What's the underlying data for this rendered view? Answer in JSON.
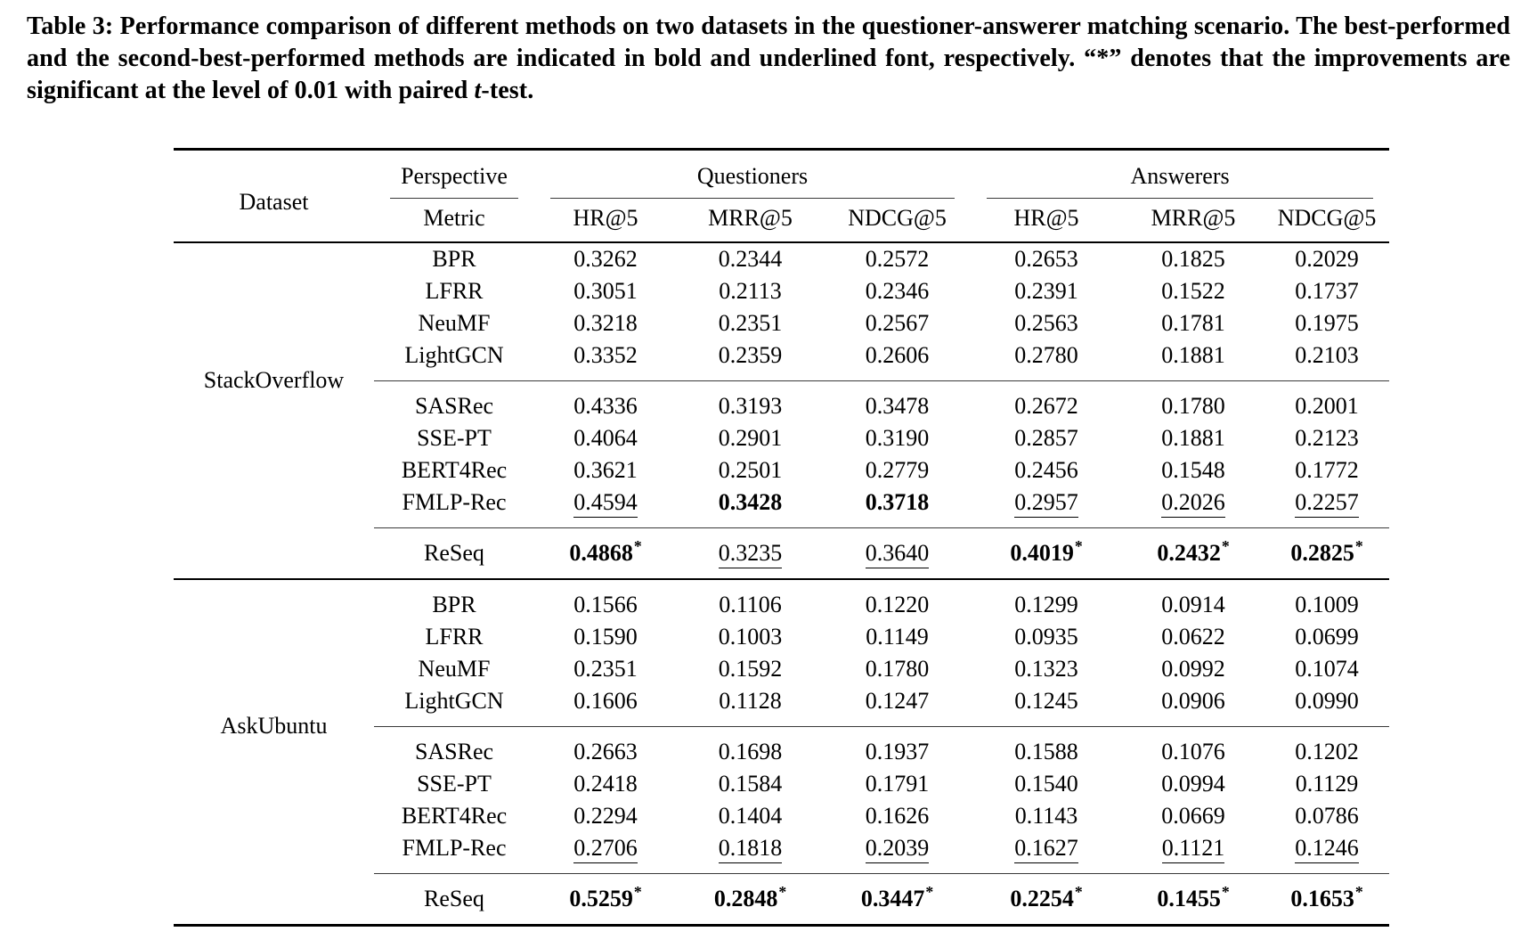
{
  "caption": {
    "text_before_italic": "Table 3: Performance comparison of different methods on two datasets in the questioner-answerer matching scenario. The best-performed and the second-best-performed methods are indicated in bold and underlined font, respectively. “*” denotes that the improvements are significant at the level of 0.01 with paired ",
    "italic_term": "t",
    "text_after_italic": "-test."
  },
  "colors": {
    "text": "#000000",
    "background": "#ffffff",
    "thick_rule": "#000000",
    "thin_rule": "#3a3a3a"
  },
  "table": {
    "header": {
      "dataset_label": "Dataset",
      "perspective_label": "Perspective",
      "metric_label": "Metric",
      "group_labels": [
        "Questioners",
        "Answerers"
      ],
      "metric_columns": [
        "HR@5",
        "MRR@5",
        "NDCG@5",
        "HR@5",
        "MRR@5",
        "NDCG@5"
      ]
    },
    "datasets": [
      {
        "name": "StackOverflow",
        "method_groups": [
          {
            "rows": [
              {
                "method": "BPR",
                "cells": [
                  {
                    "v": "0.3262"
                  },
                  {
                    "v": "0.2344"
                  },
                  {
                    "v": "0.2572"
                  },
                  {
                    "v": "0.2653"
                  },
                  {
                    "v": "0.1825"
                  },
                  {
                    "v": "0.2029"
                  }
                ]
              },
              {
                "method": "LFRR",
                "cells": [
                  {
                    "v": "0.3051"
                  },
                  {
                    "v": "0.2113"
                  },
                  {
                    "v": "0.2346"
                  },
                  {
                    "v": "0.2391"
                  },
                  {
                    "v": "0.1522"
                  },
                  {
                    "v": "0.1737"
                  }
                ]
              },
              {
                "method": "NeuMF",
                "cells": [
                  {
                    "v": "0.3218"
                  },
                  {
                    "v": "0.2351"
                  },
                  {
                    "v": "0.2567"
                  },
                  {
                    "v": "0.2563"
                  },
                  {
                    "v": "0.1781"
                  },
                  {
                    "v": "0.1975"
                  }
                ]
              },
              {
                "method": "LightGCN",
                "cells": [
                  {
                    "v": "0.3352"
                  },
                  {
                    "v": "0.2359"
                  },
                  {
                    "v": "0.2606"
                  },
                  {
                    "v": "0.2780"
                  },
                  {
                    "v": "0.1881"
                  },
                  {
                    "v": "0.2103"
                  }
                ]
              }
            ]
          },
          {
            "rows": [
              {
                "method": "SASRec",
                "cells": [
                  {
                    "v": "0.4336"
                  },
                  {
                    "v": "0.3193"
                  },
                  {
                    "v": "0.3478"
                  },
                  {
                    "v": "0.2672"
                  },
                  {
                    "v": "0.1780"
                  },
                  {
                    "v": "0.2001"
                  }
                ]
              },
              {
                "method": "SSE-PT",
                "cells": [
                  {
                    "v": "0.4064"
                  },
                  {
                    "v": "0.2901"
                  },
                  {
                    "v": "0.3190"
                  },
                  {
                    "v": "0.2857"
                  },
                  {
                    "v": "0.1881"
                  },
                  {
                    "v": "0.2123"
                  }
                ]
              },
              {
                "method": "BERT4Rec",
                "cells": [
                  {
                    "v": "0.3621"
                  },
                  {
                    "v": "0.2501"
                  },
                  {
                    "v": "0.2779"
                  },
                  {
                    "v": "0.2456"
                  },
                  {
                    "v": "0.1548"
                  },
                  {
                    "v": "0.1772"
                  }
                ]
              },
              {
                "method": "FMLP-Rec",
                "cells": [
                  {
                    "v": "0.4594",
                    "u": 1
                  },
                  {
                    "v": "0.3428",
                    "b": 1
                  },
                  {
                    "v": "0.3718",
                    "b": 1
                  },
                  {
                    "v": "0.2957",
                    "u": 1
                  },
                  {
                    "v": "0.2026",
                    "u": 1
                  },
                  {
                    "v": "0.2257",
                    "u": 1
                  }
                ]
              }
            ]
          },
          {
            "rows": [
              {
                "method": "ReSeq",
                "cells": [
                  {
                    "v": "0.4868",
                    "b": 1,
                    "s": 1
                  },
                  {
                    "v": "0.3235",
                    "u": 1
                  },
                  {
                    "v": "0.3640",
                    "u": 1
                  },
                  {
                    "v": "0.4019",
                    "b": 1,
                    "s": 1
                  },
                  {
                    "v": "0.2432",
                    "b": 1,
                    "s": 1
                  },
                  {
                    "v": "0.2825",
                    "b": 1,
                    "s": 1
                  }
                ]
              }
            ]
          }
        ]
      },
      {
        "name": "AskUbuntu",
        "method_groups": [
          {
            "rows": [
              {
                "method": "BPR",
                "cells": [
                  {
                    "v": "0.1566"
                  },
                  {
                    "v": "0.1106"
                  },
                  {
                    "v": "0.1220"
                  },
                  {
                    "v": "0.1299"
                  },
                  {
                    "v": "0.0914"
                  },
                  {
                    "v": "0.1009"
                  }
                ]
              },
              {
                "method": "LFRR",
                "cells": [
                  {
                    "v": "0.1590"
                  },
                  {
                    "v": "0.1003"
                  },
                  {
                    "v": "0.1149"
                  },
                  {
                    "v": "0.0935"
                  },
                  {
                    "v": "0.0622"
                  },
                  {
                    "v": "0.0699"
                  }
                ]
              },
              {
                "method": "NeuMF",
                "cells": [
                  {
                    "v": "0.2351"
                  },
                  {
                    "v": "0.1592"
                  },
                  {
                    "v": "0.1780"
                  },
                  {
                    "v": "0.1323"
                  },
                  {
                    "v": "0.0992"
                  },
                  {
                    "v": "0.1074"
                  }
                ]
              },
              {
                "method": "LightGCN",
                "cells": [
                  {
                    "v": "0.1606"
                  },
                  {
                    "v": "0.1128"
                  },
                  {
                    "v": "0.1247"
                  },
                  {
                    "v": "0.1245"
                  },
                  {
                    "v": "0.0906"
                  },
                  {
                    "v": "0.0990"
                  }
                ]
              }
            ]
          },
          {
            "rows": [
              {
                "method": "SASRec",
                "cells": [
                  {
                    "v": "0.2663"
                  },
                  {
                    "v": "0.1698"
                  },
                  {
                    "v": "0.1937"
                  },
                  {
                    "v": "0.1588"
                  },
                  {
                    "v": "0.1076"
                  },
                  {
                    "v": "0.1202"
                  }
                ]
              },
              {
                "method": "SSE-PT",
                "cells": [
                  {
                    "v": "0.2418"
                  },
                  {
                    "v": "0.1584"
                  },
                  {
                    "v": "0.1791"
                  },
                  {
                    "v": "0.1540"
                  },
                  {
                    "v": "0.0994"
                  },
                  {
                    "v": "0.1129"
                  }
                ]
              },
              {
                "method": "BERT4Rec",
                "cells": [
                  {
                    "v": "0.2294"
                  },
                  {
                    "v": "0.1404"
                  },
                  {
                    "v": "0.1626"
                  },
                  {
                    "v": "0.1143"
                  },
                  {
                    "v": "0.0669"
                  },
                  {
                    "v": "0.0786"
                  }
                ]
              },
              {
                "method": "FMLP-Rec",
                "cells": [
                  {
                    "v": "0.2706",
                    "u": 1
                  },
                  {
                    "v": "0.1818",
                    "u": 1
                  },
                  {
                    "v": "0.2039",
                    "u": 1
                  },
                  {
                    "v": "0.1627",
                    "u": 1
                  },
                  {
                    "v": "0.1121",
                    "u": 1
                  },
                  {
                    "v": "0.1246",
                    "u": 1
                  }
                ]
              }
            ]
          },
          {
            "rows": [
              {
                "method": "ReSeq",
                "cells": [
                  {
                    "v": "0.5259",
                    "b": 1,
                    "s": 1
                  },
                  {
                    "v": "0.2848",
                    "b": 1,
                    "s": 1
                  },
                  {
                    "v": "0.3447",
                    "b": 1,
                    "s": 1
                  },
                  {
                    "v": "0.2254",
                    "b": 1,
                    "s": 1
                  },
                  {
                    "v": "0.1455",
                    "b": 1,
                    "s": 1
                  },
                  {
                    "v": "0.1653",
                    "b": 1,
                    "s": 1
                  }
                ]
              }
            ]
          }
        ]
      }
    ]
  }
}
